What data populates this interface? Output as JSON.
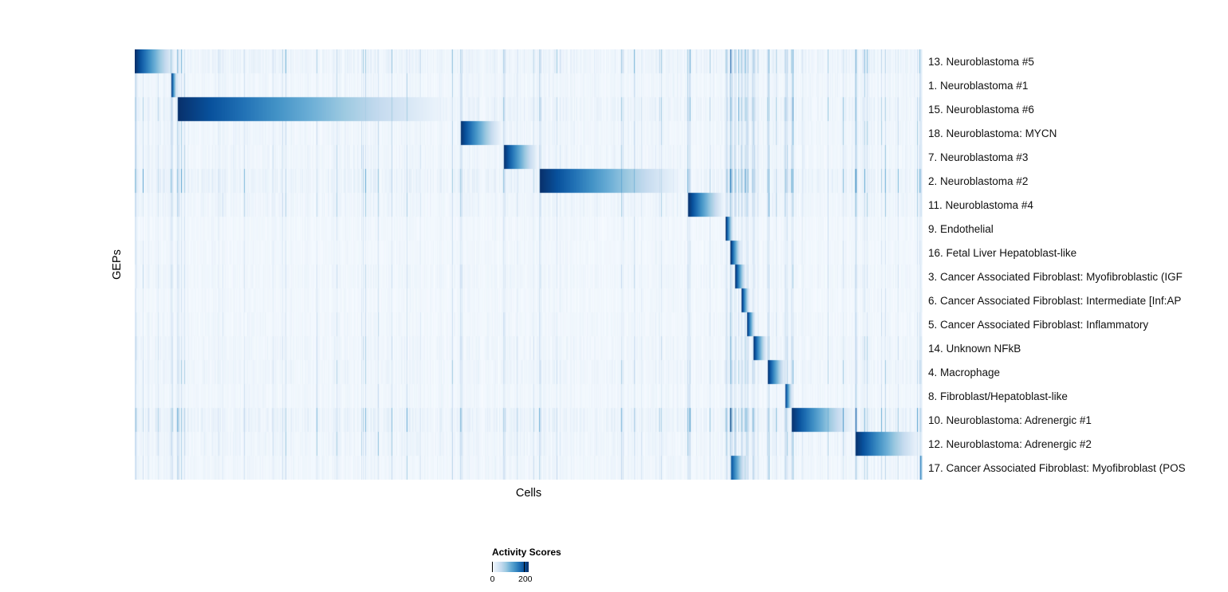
{
  "figure": {
    "background": "#ffffff"
  },
  "chart_data": {
    "type": "heatmap",
    "title": "",
    "xlabel": "Cells",
    "ylabel": "GEPs",
    "value_range": [
      0,
      200
    ],
    "colormap_name": "Blues",
    "colormap_stops": [
      "#f7fbff",
      "#deebf7",
      "#c6dbef",
      "#9ecae1",
      "#6baed6",
      "#4292c6",
      "#2171b5",
      "#08519c",
      "#08306b"
    ],
    "legend": {
      "title": "Activity Scores",
      "ticks": [
        {
          "label": "0",
          "pos": 0.0
        },
        {
          "label": "200",
          "pos": 0.87
        }
      ]
    },
    "rows_note": "each row = one GEP; cells on x-axis grouped by dominant GEP; blocks = [start_fraction, end_fraction, peak_activity]",
    "rows": [
      {
        "label": "13. Neuroblastoma #5",
        "blocks": [
          [
            0.0,
            0.054,
            200
          ]
        ],
        "noise": 1.4
      },
      {
        "label": "1. Neuroblastoma #1",
        "blocks": [
          [
            0.046,
            0.054,
            200
          ]
        ],
        "noise": 0.9
      },
      {
        "label": "15. Neuroblastoma #6",
        "blocks": [
          [
            0.054,
            0.413,
            200
          ]
        ],
        "noise": 1.3
      },
      {
        "label": "18. Neuroblastoma: MYCN",
        "blocks": [
          [
            0.413,
            0.468,
            200
          ]
        ],
        "noise": 1.0
      },
      {
        "label": "7. Neuroblastoma #3",
        "blocks": [
          [
            0.468,
            0.514,
            200
          ]
        ],
        "noise": 1.0
      },
      {
        "label": "2. Neuroblastoma #2",
        "blocks": [
          [
            0.514,
            0.702,
            200
          ]
        ],
        "noise": 1.6
      },
      {
        "label": "11. Neuroblastoma #4",
        "blocks": [
          [
            0.702,
            0.75,
            200
          ]
        ],
        "noise": 1.1
      },
      {
        "label": "9. Endothelial",
        "blocks": [
          [
            0.75,
            0.76,
            200
          ]
        ],
        "noise": 0.6
      },
      {
        "label": "16. Fetal Liver Hepatoblast-like",
        "blocks": [
          [
            0.756,
            0.77,
            200
          ]
        ],
        "noise": 0.6
      },
      {
        "label": "3. Cancer Associated Fibroblast: Myofibroblastic (IGF",
        "blocks": [
          [
            0.762,
            0.776,
            200
          ]
        ],
        "noise": 0.8
      },
      {
        "label": "6. Cancer Associated Fibroblast: Intermediate [Inf:AP",
        "blocks": [
          [
            0.77,
            0.781,
            200
          ]
        ],
        "noise": 0.6
      },
      {
        "label": "5. Cancer Associated Fibroblast: Inflammatory",
        "blocks": [
          [
            0.777,
            0.788,
            200
          ]
        ],
        "noise": 0.7
      },
      {
        "label": "14. Unknown NFkB",
        "blocks": [
          [
            0.785,
            0.803,
            200
          ]
        ],
        "noise": 0.9
      },
      {
        "label": "4. Macrophage",
        "blocks": [
          [
            0.803,
            0.827,
            200
          ]
        ],
        "noise": 1.0
      },
      {
        "label": "8. Fibroblast/Hepatoblast-like",
        "blocks": [
          [
            0.825,
            0.835,
            200
          ]
        ],
        "noise": 0.7
      },
      {
        "label": "10. Neuroblastoma: Adrenergic #1",
        "blocks": [
          [
            0.833,
            0.915,
            200
          ]
        ],
        "noise": 1.6
      },
      {
        "label": "12. Neuroblastoma: Adrenergic #2",
        "blocks": [
          [
            0.914,
            1.0,
            200
          ]
        ],
        "noise": 1.1
      },
      {
        "label": "17. Cancer Associated Fibroblast: Myofibroblast (POS",
        "blocks": [
          [
            0.757,
            0.777,
            170
          ],
          [
            0.996,
            1.0,
            180
          ]
        ],
        "noise": 0.9
      }
    ]
  }
}
